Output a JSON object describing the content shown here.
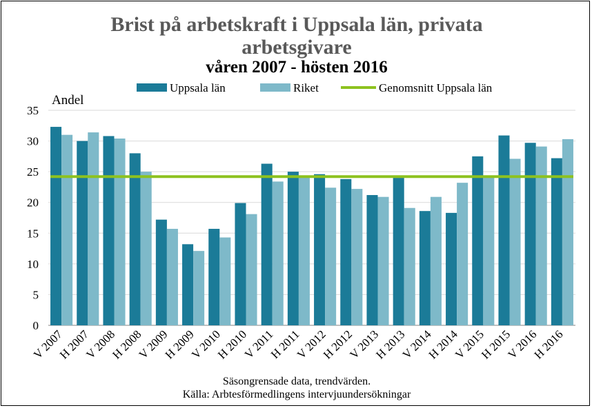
{
  "chart_data": {
    "type": "bar",
    "title_line1": "Brist på arbetskraft i Uppsala län, privata",
    "title_line2": "arbetsgivare",
    "subtitle": "våren 2007 - hösten 2016",
    "ylabel": "Andel",
    "xlabel": "",
    "ylim": [
      0,
      35
    ],
    "yticks": [
      0,
      5,
      10,
      15,
      20,
      25,
      30,
      35
    ],
    "grid": true,
    "legend_position": "top",
    "categories": [
      "V 2007",
      "H 2007",
      "V 2008",
      "H 2008",
      "V 2009",
      "H 2009",
      "V 2010",
      "H 2010",
      "V 2011",
      "H 2011",
      "V 2012",
      "H 2012",
      "V 2013",
      "H 2013",
      "V 2014",
      "H 2014",
      "V 2015",
      "H 2015",
      "V 2016",
      "H 2016"
    ],
    "series": [
      {
        "name": "Uppsala län",
        "color": "#1b7b98",
        "values": [
          32.3,
          30.0,
          30.8,
          28.0,
          17.2,
          13.2,
          15.7,
          19.9,
          26.3,
          25.0,
          24.6,
          23.8,
          21.2,
          24.0,
          18.6,
          18.3,
          27.5,
          30.9,
          29.7,
          27.2
        ]
      },
      {
        "name": "Riket",
        "color": "#7eb9c9",
        "values": [
          31.0,
          31.4,
          30.4,
          25.0,
          15.7,
          12.1,
          14.3,
          18.1,
          23.4,
          24.2,
          22.4,
          22.2,
          20.9,
          19.1,
          20.9,
          23.2,
          24.4,
          27.1,
          29.1,
          30.3
        ]
      }
    ],
    "reference_line": {
      "name": "Genomsnitt Uppsala län",
      "value": 24.2,
      "color": "#8dc21f"
    },
    "footnote_line1": "Säsongrensade data, trendvärden.",
    "footnote_line2": "Källa: Arbtesförmedlingens intervjuundersökningar"
  }
}
